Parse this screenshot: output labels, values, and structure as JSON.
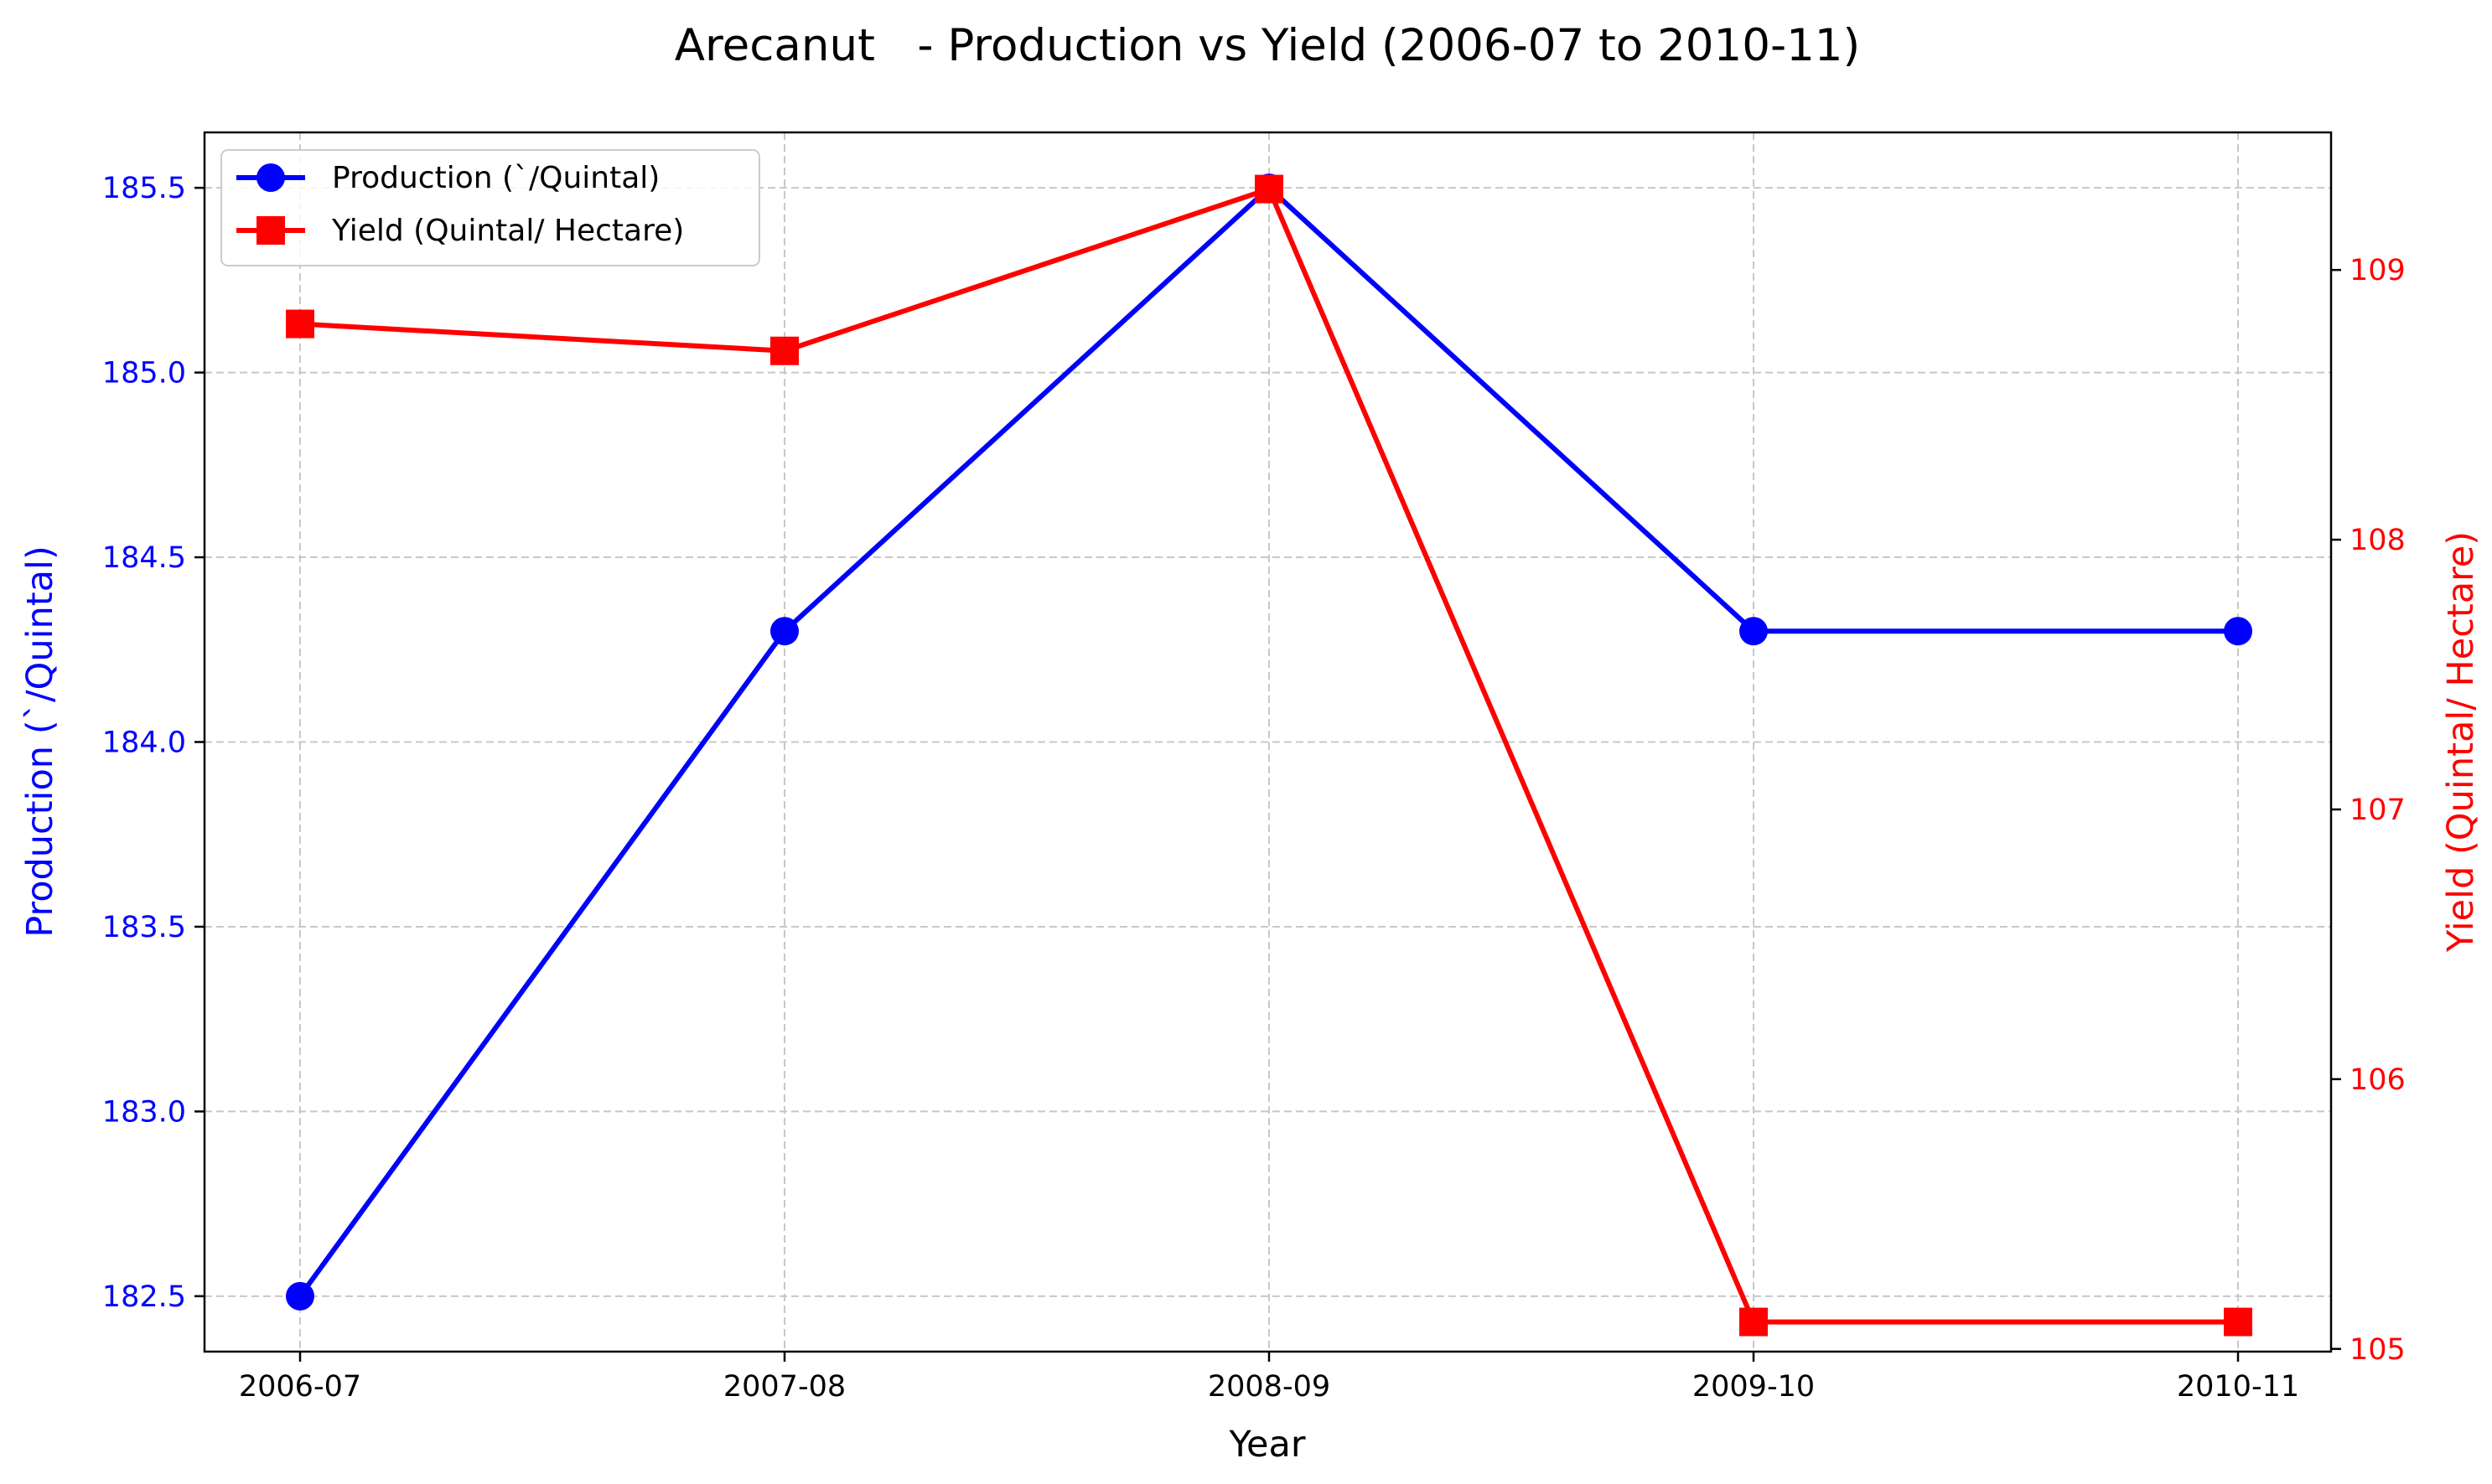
{
  "chart_data": {
    "type": "line",
    "title": "Arecanut   - Production vs Yield (2006-07 to 2010-11)",
    "xlabel": "Year",
    "categories": [
      "2006-07",
      "2007-08",
      "2008-09",
      "2009-10",
      "2010-11"
    ],
    "series": [
      {
        "name": "Production (`/Quintal)",
        "axis": "left",
        "color": "#0000ff",
        "marker": "circle",
        "values": [
          182.5,
          184.3,
          185.5,
          184.3,
          184.3
        ]
      },
      {
        "name": "Yield (Quintal/ Hectare)",
        "axis": "right",
        "color": "#ff0000",
        "marker": "square",
        "values": [
          108.8,
          108.7,
          109.3,
          105.1,
          105.1
        ]
      }
    ],
    "y_left": {
      "label": "Production (`/Quintal)",
      "color": "#0000ff",
      "ylim": [
        182.35,
        185.65
      ],
      "ticks": [
        182.5,
        183.0,
        183.5,
        184.0,
        184.5,
        185.0,
        185.5
      ],
      "tick_labels": [
        "182.5",
        "183.0",
        "183.5",
        "184.0",
        "184.5",
        "185.0",
        "185.5"
      ]
    },
    "y_right": {
      "label": "Yield (Quintal/ Hectare)",
      "color": "#ff0000",
      "ylim": [
        104.99,
        109.51
      ],
      "ticks": [
        105,
        106,
        107,
        108,
        109
      ],
      "tick_labels": [
        "105",
        "106",
        "107",
        "108",
        "109"
      ]
    },
    "grid": true,
    "legend_position": "upper-left"
  }
}
